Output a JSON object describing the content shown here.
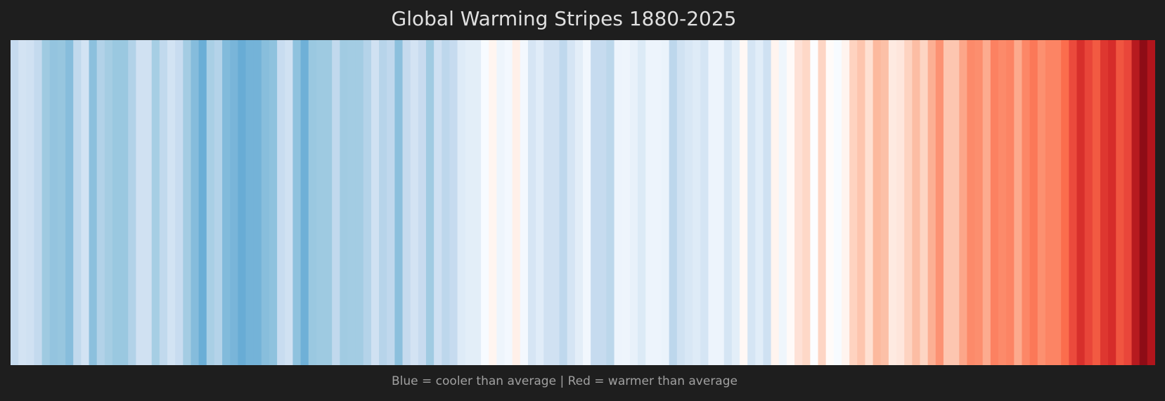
{
  "chart_data": {
    "type": "heatmap",
    "title": "Global Warming Stripes 1880-2025",
    "caption": "Blue = cooler than average | Red = warmer than average",
    "x_start_year": 1880,
    "x_end_year": 2025,
    "grid": false,
    "axes_visible": false,
    "colors": [
      "#c6dbef",
      "#d3e3f3",
      "#d0e1f2",
      "#c4daee",
      "#9fcae1",
      "#94c4df",
      "#97c6df",
      "#87bddc",
      "#c1d9ed",
      "#d2e3f3",
      "#8cc0dd",
      "#b2d2e8",
      "#a5cde3",
      "#9ac8e0",
      "#9ac8e0",
      "#b2d2e8",
      "#d0e1f2",
      "#d0e1f2",
      "#a6cee4",
      "#c1d9ed",
      "#d2e3f3",
      "#c8dcf0",
      "#a4cce3",
      "#85bcdc",
      "#6aaed6",
      "#a9cfe5",
      "#b4d3e9",
      "#82bbdb",
      "#79b5d9",
      "#68acd5",
      "#74b3d8",
      "#74b3d8",
      "#88bedc",
      "#8fc2de",
      "#c8dcf0",
      "#d0e1f2",
      "#8fc2de",
      "#6fb0d7",
      "#9ac8e0",
      "#9ecae1",
      "#9ecae1",
      "#c1d9ed",
      "#a1cbe2",
      "#a3cce3",
      "#a3cce3",
      "#b4d3e9",
      "#d0e1f2",
      "#b7d4ea",
      "#c0d8ed",
      "#8cc0dd",
      "#c5daee",
      "#d3e3f3",
      "#c7dbef",
      "#a0cbe2",
      "#cee0f2",
      "#bdd7ec",
      "#c6dbef",
      "#deebf7",
      "#e3eef8",
      "#e3eef8",
      "#f7fbff",
      "#fff5f0",
      "#eef5fc",
      "#f3f8fe",
      "#fff0e9",
      "#f3f8fe",
      "#d6e5f4",
      "#e0ecf8",
      "#d0e1f2",
      "#d0e1f2",
      "#bfd8ed",
      "#d5e5f4",
      "#e3eef8",
      "#f1f7fd",
      "#c6dbef",
      "#c6dbef",
      "#bcd7eb",
      "#edf4fc",
      "#eef5fc",
      "#e8f1fa",
      "#dceaf6",
      "#edf4fc",
      "#edf4fc",
      "#eaf3fb",
      "#bdd7ec",
      "#d0e2f2",
      "#d8e7f5",
      "#deebf7",
      "#d5e5f4",
      "#edf4fc",
      "#edf4fc",
      "#d5e5f4",
      "#e3eef8",
      "#fff8f5",
      "#d5e5f4",
      "#e1edf8",
      "#cfe1f2",
      "#fff4ef",
      "#eff6fc",
      "#fffaf8",
      "#fee1d6",
      "#fed8c7",
      "#fcfdff",
      "#fdd5c4",
      "#fffbf9",
      "#f7fbff",
      "#fff4ef",
      "#fed3c0",
      "#fdc5ae",
      "#fee0d2",
      "#fcb99e",
      "#fcc0a7",
      "#feeae1",
      "#fee6dc",
      "#fdd3c1",
      "#fcbda4",
      "#fdd5c3",
      "#fcaf93",
      "#fc9273",
      "#fdc6b0",
      "#fdc6b0",
      "#fca689",
      "#fc8a6a",
      "#fc8e6e",
      "#fcab8f",
      "#fc8161",
      "#fc8a6a",
      "#fc8464",
      "#fcaa8d",
      "#fc8767",
      "#fb7858",
      "#fc9070",
      "#fc8464",
      "#fc8464",
      "#fb6d4d",
      "#eb4a3c",
      "#d72f2b",
      "#e84539",
      "#f25a42",
      "#de3730",
      "#d62c2a",
      "#f05540",
      "#e9463a",
      "#b71a1f",
      "#8e0c16",
      "#b1151c"
    ]
  },
  "colors": {
    "background": "#1e1e1e",
    "title": "#e0e0e0",
    "caption": "#a0a0a0"
  }
}
